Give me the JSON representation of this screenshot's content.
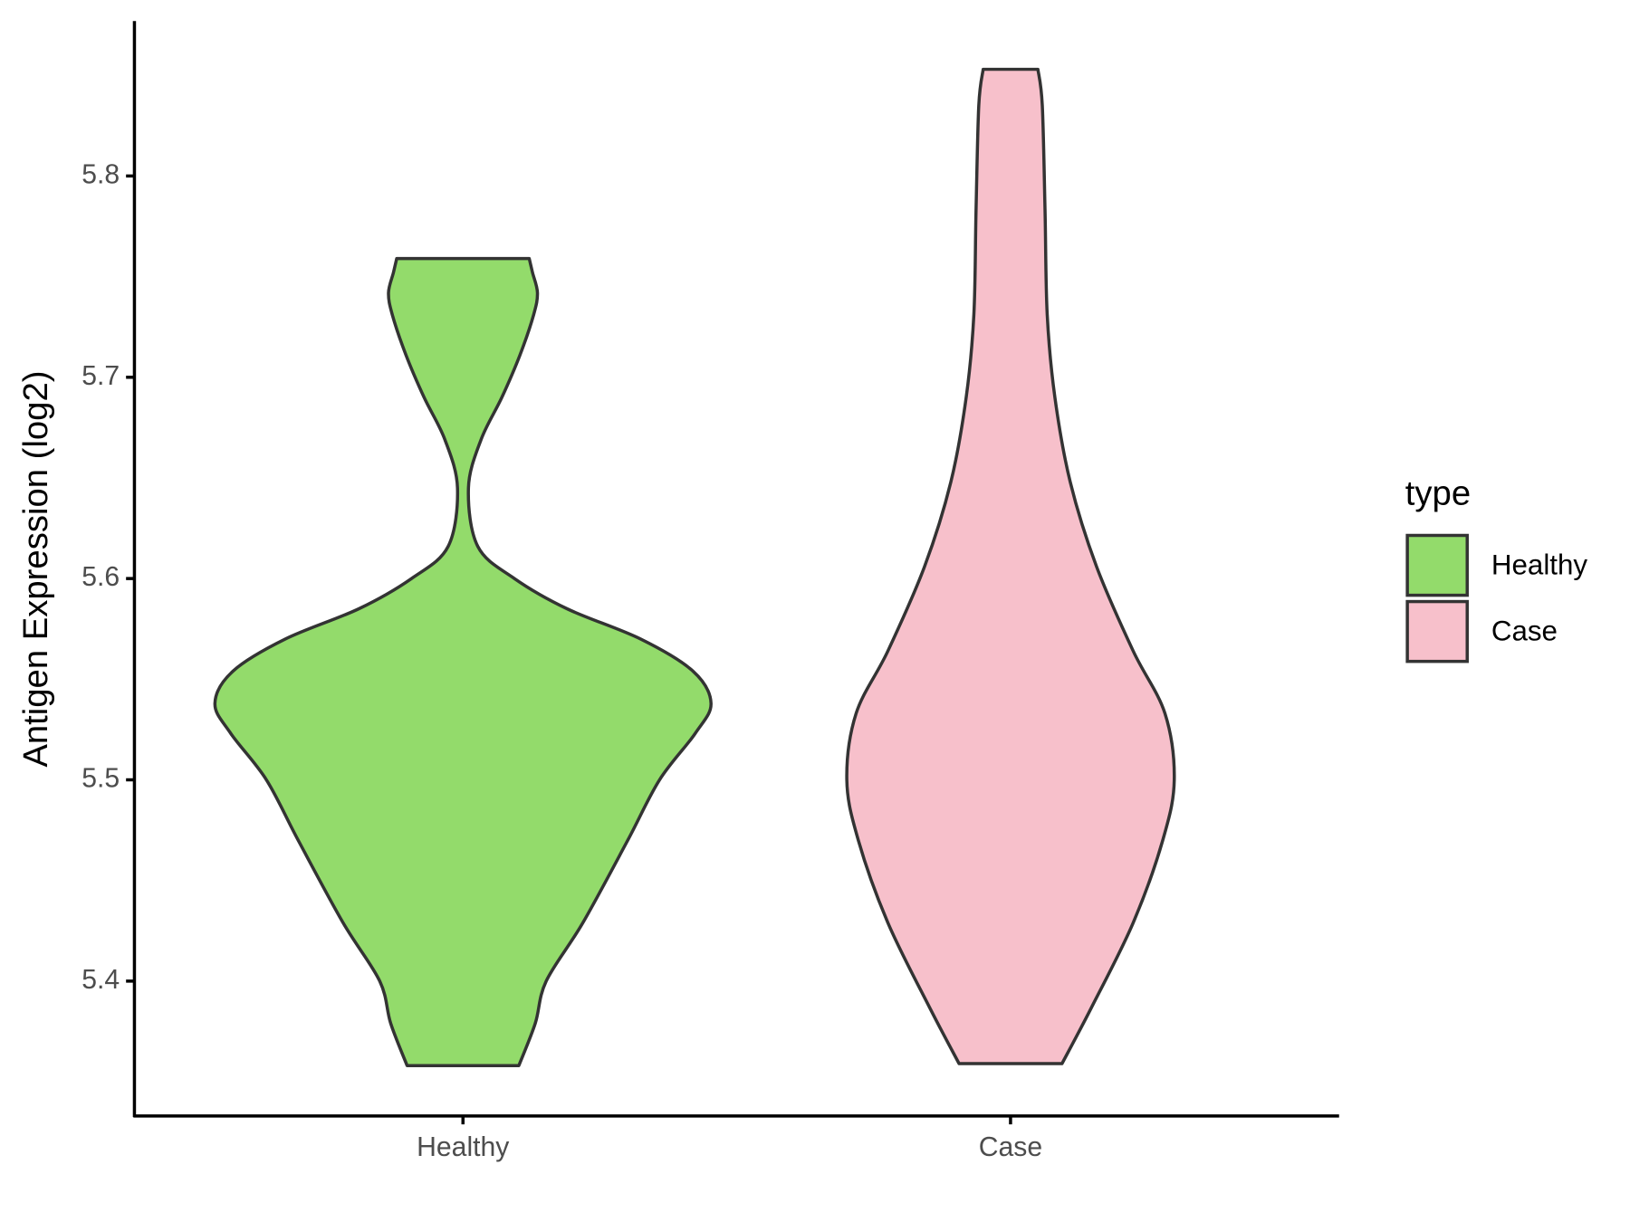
{
  "chart_data": {
    "type": "violin",
    "y_label": "Antigen Expression (log2)",
    "categories": [
      "Healthy",
      "Case"
    ],
    "series": [
      {
        "name": "Healthy",
        "color": "#93DB6B",
        "y": [
          5.358,
          5.379,
          5.4,
          5.429,
          5.47,
          5.5,
          5.523,
          5.538,
          5.554,
          5.57,
          5.585,
          5.6,
          5.616,
          5.645,
          5.669,
          5.69,
          5.711,
          5.731,
          5.742,
          5.752,
          5.759
        ],
        "half_widths": [
          0.102,
          0.132,
          0.152,
          0.219,
          0.301,
          0.359,
          0.424,
          0.453,
          0.42,
          0.324,
          0.19,
          0.094,
          0.027,
          0.01,
          0.033,
          0.071,
          0.104,
          0.129,
          0.136,
          0.127,
          0.121
        ]
      },
      {
        "name": "Case",
        "color": "#F7C0CB",
        "y": [
          5.359,
          5.387,
          5.429,
          5.47,
          5.5,
          5.533,
          5.564,
          5.606,
          5.648,
          5.69,
          5.731,
          5.783,
          5.835,
          5.853
        ],
        "half_widths": [
          0.094,
          0.148,
          0.224,
          0.278,
          0.299,
          0.282,
          0.224,
          0.157,
          0.109,
          0.081,
          0.067,
          0.063,
          0.058,
          0.05
        ]
      }
    ],
    "ylim": [
      5.333,
      5.877
    ],
    "yticks": [
      5.4,
      5.5,
      5.6,
      5.7,
      5.8
    ],
    "xlim": [
      0.4,
      2.6
    ],
    "legend_title": "type",
    "legend": "right"
  }
}
